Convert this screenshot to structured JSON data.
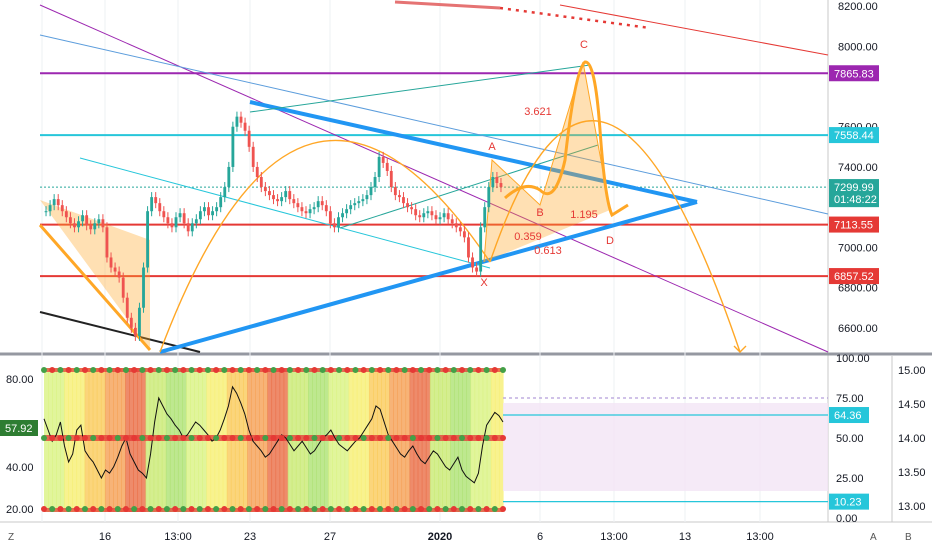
{
  "colors": {
    "cyan": "#26c6da",
    "red": "#e53935",
    "purple": "#9c27b0",
    "blue": "#2196f3",
    "orange": "#ffa726",
    "green_badge": "#2e7d32"
  },
  "chart_data": [
    {
      "type": "candlestick",
      "panel": "price",
      "ylim": [
        6480,
        8230
      ],
      "y_ticks": [
        "8200.00",
        "8000.00",
        "7600.00",
        "7400.00",
        "7000.00",
        "6800.00",
        "6600.00"
      ],
      "x_ticks": [
        "16",
        "13:00",
        "23",
        "27",
        "2020",
        "6",
        "13:00",
        "13",
        "13:00"
      ],
      "x_ticks_bottom_note": "2020 shown bold",
      "price_badges": [
        {
          "label": "7865.83",
          "value": 7865.83,
          "color": "#9c27b0"
        },
        {
          "label": "7558.44",
          "value": 7558.44,
          "color": "#26c6da"
        },
        {
          "label": "7299.99",
          "value": 7299.99,
          "color": "#26a69a"
        },
        {
          "label": "01:48:22",
          "value": 7240,
          "color": "#26a69a"
        },
        {
          "label": "7113.55",
          "value": 7113.55,
          "color": "#e53935"
        },
        {
          "label": "6857.52",
          "value": 6857.52,
          "color": "#e53935"
        }
      ],
      "horizontal_levels": [
        {
          "value": 7865.83,
          "color": "#9c27b0"
        },
        {
          "value": 7558.44,
          "color": "#26c6da"
        },
        {
          "value": 7113.55,
          "color": "#e53935"
        },
        {
          "value": 6857.52,
          "color": "#e53935"
        }
      ],
      "candles_close": [
        7180,
        7210,
        7240,
        7210,
        7180,
        7150,
        7120,
        7100,
        7130,
        7160,
        7110,
        7090,
        7120,
        7140,
        7100,
        6950,
        6900,
        6880,
        6850,
        6750,
        6650,
        6600,
        6560,
        6700,
        6900,
        7180,
        7250,
        7220,
        7180,
        7150,
        7120,
        7100,
        7150,
        7170,
        7120,
        7080,
        7120,
        7140,
        7180,
        7200,
        7160,
        7180,
        7200,
        7250,
        7300,
        7400,
        7600,
        7650,
        7620,
        7580,
        7500,
        7400,
        7350,
        7300,
        7280,
        7260,
        7240,
        7230,
        7250,
        7280,
        7240,
        7220,
        7200,
        7180,
        7170,
        7190,
        7200,
        7230,
        7210,
        7180,
        7120,
        7100,
        7150,
        7170,
        7190,
        7210,
        7220,
        7230,
        7240,
        7260,
        7300,
        7350,
        7450,
        7420,
        7380,
        7300,
        7260,
        7250,
        7220,
        7200,
        7190,
        7160,
        7150,
        7170,
        7180,
        7160,
        7140,
        7150,
        7170,
        7140,
        7120,
        7100,
        7080,
        7050,
        6950,
        6900,
        6880,
        7100,
        7200,
        7300,
        7350,
        7320,
        7300
      ],
      "pattern_labels": [
        "X",
        "A",
        "B",
        "C",
        "D"
      ],
      "fib_labels": [
        "3.621",
        "1.195",
        "0.359",
        "0.613"
      ]
    },
    {
      "type": "line",
      "panel": "oscillator",
      "left_ticks": [
        "80.00",
        "40.00",
        "20.00"
      ],
      "left_badge": "57.92",
      "right_ticks": [
        "100.00",
        "75.00",
        "50.00",
        "25.00",
        "0.00"
      ],
      "right_badges": [
        "64.36",
        "10.23"
      ],
      "far_right_ticks": [
        "15.00",
        "14.50",
        "14.00",
        "13.50",
        "13.00"
      ],
      "values": [
        62,
        55,
        48,
        52,
        60,
        45,
        35,
        40,
        55,
        58,
        42,
        38,
        35,
        30,
        25,
        30,
        28,
        32,
        38,
        45,
        50,
        40,
        35,
        30,
        28,
        25,
        40,
        60,
        75,
        70,
        65,
        62,
        58,
        55,
        50,
        52,
        56,
        60,
        58,
        55,
        52,
        48,
        50,
        55,
        62,
        70,
        82,
        78,
        72,
        65,
        55,
        48,
        45,
        42,
        38,
        40,
        44,
        48,
        52,
        50,
        46,
        42,
        45,
        48,
        44,
        40,
        42,
        46,
        50,
        52,
        55,
        50,
        46,
        44,
        42,
        45,
        48,
        50,
        54,
        58,
        62,
        70,
        68,
        60,
        52,
        48,
        44,
        40,
        38,
        42,
        45,
        40,
        36,
        34,
        38,
        42,
        40,
        36,
        32,
        30,
        34,
        38,
        30,
        26,
        24,
        22,
        28,
        45,
        58,
        62,
        66,
        64,
        60
      ]
    }
  ],
  "bottom_bar": {
    "left_icon_label": "Z",
    "auto_label": "A",
    "b_label": "B"
  }
}
